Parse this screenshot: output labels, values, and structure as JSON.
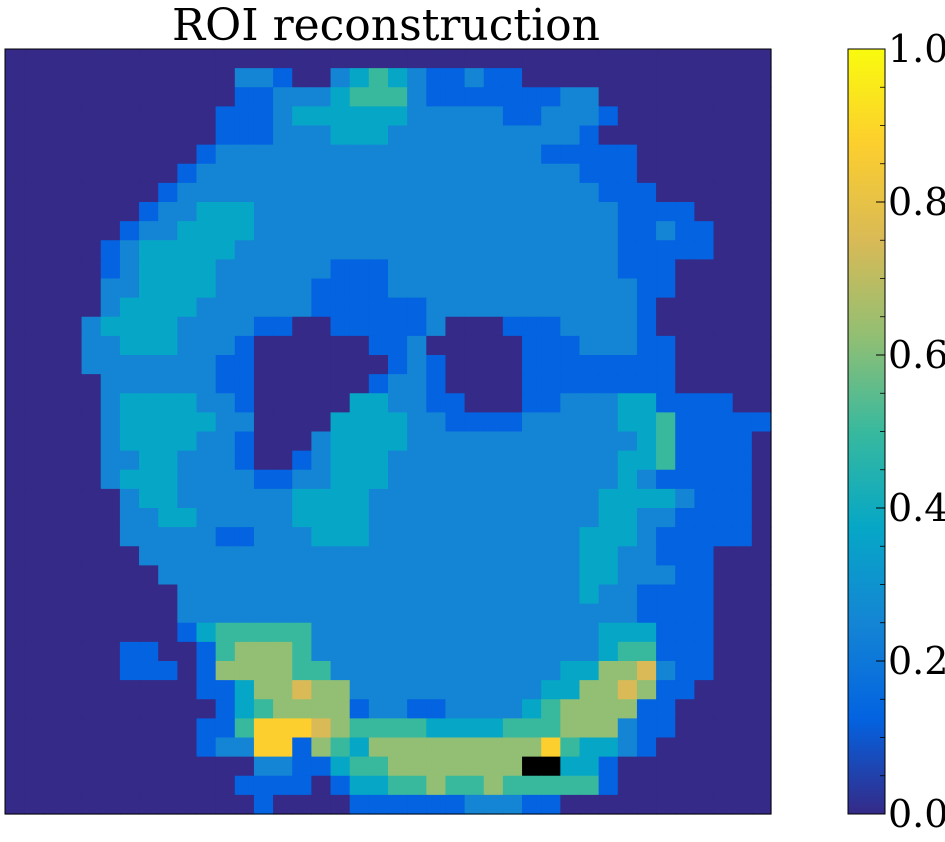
{
  "chart_data": {
    "type": "heatmap",
    "title": "ROI reconstruction",
    "colormap": "parula",
    "colorbar": {
      "vmin": 0.0,
      "vmax": 1.0,
      "ticks": [
        {
          "value": 0.0,
          "label": "0.0"
        },
        {
          "value": 0.2,
          "label": "0.2"
        },
        {
          "value": 0.4,
          "label": "0.4"
        },
        {
          "value": 0.6,
          "label": "0.6"
        },
        {
          "value": 0.8,
          "label": "0.8"
        },
        {
          "value": 1.0,
          "label": "1.0"
        }
      ],
      "colors": [
        "#352a87",
        "#0363e1",
        "#1485d4",
        "#06a7c6",
        "#38b99e",
        "#92bf73",
        "#d9ba56",
        "#fcce2e",
        "#f9fb0e"
      ]
    },
    "grid": false,
    "axes_visible": false,
    "rows": [
      "0000000000000000000000000000000000000000",
      "0000000000002210023432112110000000000000",
      "0000000000001122234442111111122000000000",
      "0000000000011123333332222211222100000000",
      "0000000000011122233322222222221000000000",
      "0000000000122222222222222222111110000000",
      "0000000001222222222222222222221110000000",
      "0000000012222222222222222222222111000000",
      "0000000122333222222222222222222211110000",
      "0000001223333222222222222222222211211000",
      "0000012333332222222222222222222211111000",
      "0000012333322222211122222222222211100000",
      "0000022333322222111122222222222221100000",
      "0000023333222222111111222222222221000000",
      "0000233332222110011111200011122221000000",
      "0000223332221000000112000001112221100000",
      "0000222222211000000012100001111111100000",
      "0000022222211000000122100001111111100000",
      "0000023333221000003322110001122233111100",
      "0000023333322000033332211112222233411111",
      "0000023333221000233332222222222223411110",
      "0000022332221001233322222222222233411110",
      "0000023332222112233322222222222232111110",
      "0000002332222223333222222222222333321110",
      "0000002233222223333222222222222332211110",
      "0000002222211222333222222222223332111110",
      "0000000222222222222222222222223322111000",
      "0000000022222222222222222222223322211000",
      "0000000002222222222222222222223221111000",
      "0000000002222222222222222222222221111000",
      "0000000001344444222222222222222333111000",
      "0000001100145554222222222222222344111000",
      "0000001110155554422222222222233556211000",
      "0000000000113556552222222222335565110000",
      "0000000000013455551221122223455551100000",
      "0000000000114777654444333344455521100000",
      "0000000000122771543555555555743321000000",
      "0000000000000221134455555559933100000000",
      "0000000000001111013344544544444100000000",
      "0000000000000100001111112221100000000000"
    ]
  }
}
